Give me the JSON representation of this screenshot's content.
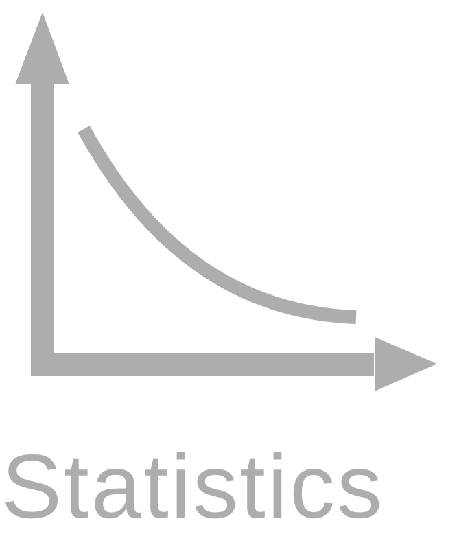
{
  "icon": {
    "name": "statistics-chart-icon",
    "color": "#adadad"
  },
  "caption": {
    "text": "Statistics",
    "color": "#adadad"
  }
}
